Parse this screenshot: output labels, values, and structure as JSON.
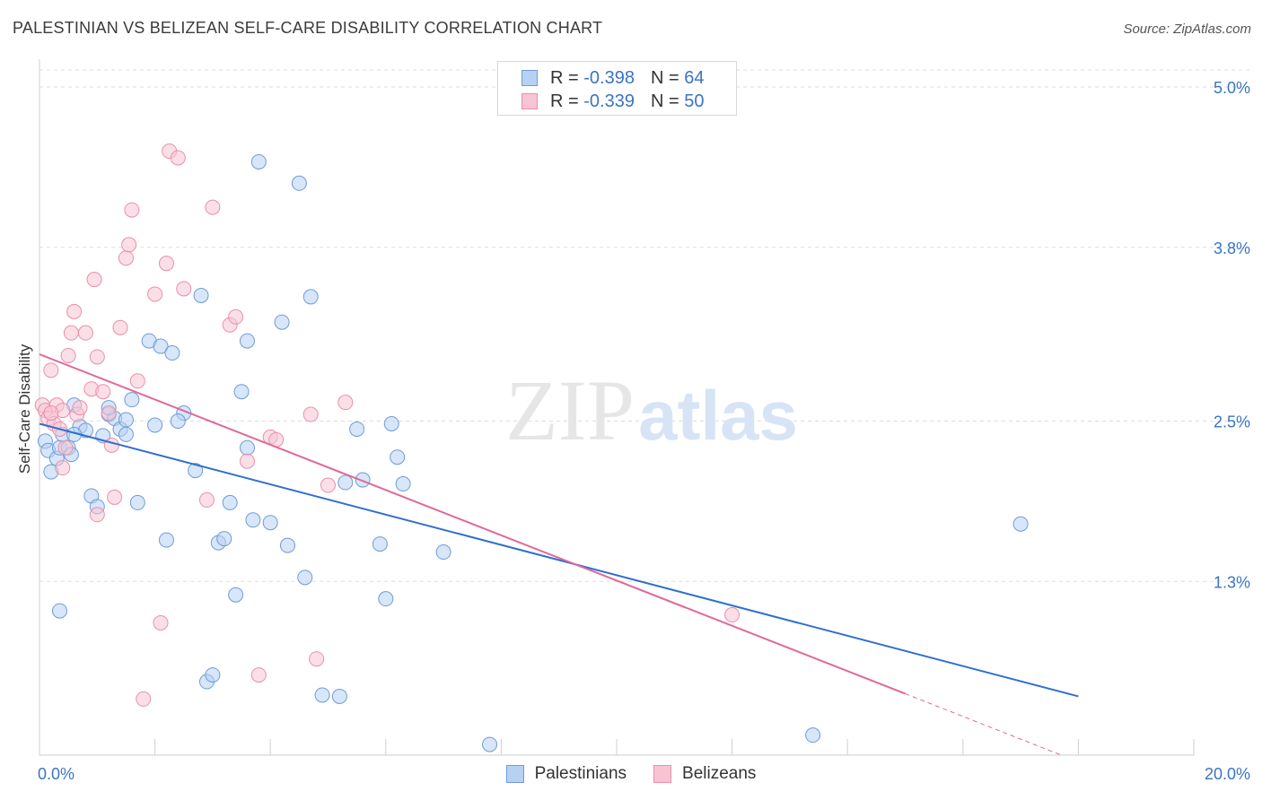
{
  "title": "PALESTINIAN VS BELIZEAN SELF-CARE DISABILITY CORRELATION CHART",
  "source": "Source: ZipAtlas.com",
  "watermark": {
    "zip": "ZIP",
    "atlas": "atlas"
  },
  "legend": {
    "rows": [
      {
        "r_label": "R =",
        "r_value": "-0.398",
        "n_label": "N =",
        "n_value": "64"
      },
      {
        "r_label": "R =",
        "r_value": "-0.339",
        "n_label": "N =",
        "n_value": "50"
      }
    ]
  },
  "colors": {
    "palestinians_fill": "#b7d1f3",
    "palestinians_stroke": "#6f9bd8",
    "palestinians_line": "#2e6fd0",
    "belizeans_fill": "#f8c4d4",
    "belizeans_stroke": "#ea8fab",
    "belizeans_line": "#e0679a",
    "grid": "#dddddd",
    "tick_label": "#3b74c4"
  },
  "chart_data": {
    "type": "scatter",
    "xlabel": "",
    "ylabel": "Self-Care Disability",
    "xlim": [
      0,
      20
    ],
    "ylim": [
      0,
      5.2
    ],
    "x_tick_labels": [
      {
        "value": 0,
        "label": "0.0%"
      },
      {
        "value": 20,
        "label": "20.0%"
      }
    ],
    "y_tick_labels": [
      {
        "value": 1.3,
        "label": "1.3%"
      },
      {
        "value": 2.5,
        "label": "2.5%"
      },
      {
        "value": 3.8,
        "label": "3.8%"
      },
      {
        "value": 5.0,
        "label": "5.0%"
      }
    ],
    "grid": true,
    "legend_position": "bottom-center",
    "series": [
      {
        "name": "Palestinians",
        "x": [
          0.1,
          0.15,
          0.2,
          0.3,
          0.35,
          0.4,
          0.5,
          0.55,
          0.6,
          0.7,
          0.8,
          0.9,
          1.0,
          1.1,
          1.2,
          1.3,
          1.4,
          1.5,
          1.5,
          1.6,
          1.7,
          1.9,
          2.0,
          2.1,
          2.2,
          2.3,
          2.5,
          2.7,
          2.8,
          2.9,
          3.0,
          3.1,
          3.2,
          3.3,
          3.4,
          3.5,
          3.6,
          3.7,
          3.8,
          4.0,
          4.2,
          4.3,
          4.6,
          4.7,
          4.9,
          5.2,
          5.3,
          5.5,
          5.6,
          5.9,
          6.0,
          6.1,
          6.2,
          6.3,
          7.0,
          7.8,
          13.4,
          17.0,
          0.35,
          0.6,
          1.2,
          2.4,
          3.6,
          4.5
        ],
        "y": [
          2.35,
          2.28,
          2.12,
          2.22,
          2.3,
          2.4,
          2.3,
          2.25,
          2.62,
          2.46,
          2.43,
          1.94,
          1.86,
          2.39,
          2.55,
          2.52,
          2.44,
          2.51,
          2.4,
          2.66,
          1.89,
          3.1,
          2.47,
          3.06,
          1.61,
          3.01,
          2.56,
          2.13,
          3.44,
          0.55,
          0.6,
          1.59,
          1.62,
          1.89,
          1.2,
          2.72,
          2.3,
          1.76,
          4.44,
          1.74,
          3.24,
          1.57,
          1.33,
          3.43,
          0.45,
          0.44,
          2.04,
          2.44,
          2.06,
          1.58,
          1.17,
          2.48,
          2.23,
          2.03,
          1.52,
          0.08,
          0.15,
          1.73,
          1.08,
          2.4,
          2.6,
          2.5,
          3.1,
          4.28
        ],
        "trend": {
          "x": [
            0,
            18.0
          ],
          "y": [
            2.48,
            0.44
          ]
        }
      },
      {
        "name": "Belizeans",
        "x": [
          0.05,
          0.1,
          0.15,
          0.2,
          0.25,
          0.3,
          0.35,
          0.4,
          0.45,
          0.5,
          0.55,
          0.6,
          0.65,
          0.7,
          0.8,
          0.9,
          0.95,
          1.0,
          1.1,
          1.2,
          1.25,
          1.3,
          1.4,
          1.5,
          1.55,
          1.6,
          1.7,
          1.8,
          2.0,
          2.1,
          2.2,
          2.25,
          2.4,
          2.5,
          2.9,
          3.0,
          3.3,
          3.4,
          3.6,
          3.8,
          4.0,
          4.1,
          4.7,
          4.8,
          5.0,
          5.3,
          12.0,
          0.2,
          0.4,
          1.0
        ],
        "y": [
          2.62,
          2.58,
          2.52,
          2.88,
          2.48,
          2.62,
          2.44,
          2.58,
          2.3,
          2.99,
          3.16,
          3.32,
          2.55,
          2.6,
          3.16,
          2.74,
          3.56,
          2.98,
          2.72,
          2.56,
          2.32,
          1.93,
          3.2,
          3.72,
          3.82,
          4.08,
          2.8,
          0.42,
          3.45,
          0.99,
          3.68,
          4.52,
          4.47,
          3.49,
          1.91,
          4.1,
          3.22,
          3.28,
          2.2,
          0.6,
          2.38,
          2.36,
          2.55,
          0.72,
          2.02,
          2.64,
          1.05,
          2.56,
          2.15,
          1.8
        ],
        "trend": {
          "x": [
            0,
            15.0
          ],
          "y": [
            3.0,
            0.46
          ]
        },
        "trend_dashed": {
          "x": [
            15.0,
            20.0
          ],
          "y": [
            0.46,
            -0.39
          ]
        }
      }
    ]
  }
}
